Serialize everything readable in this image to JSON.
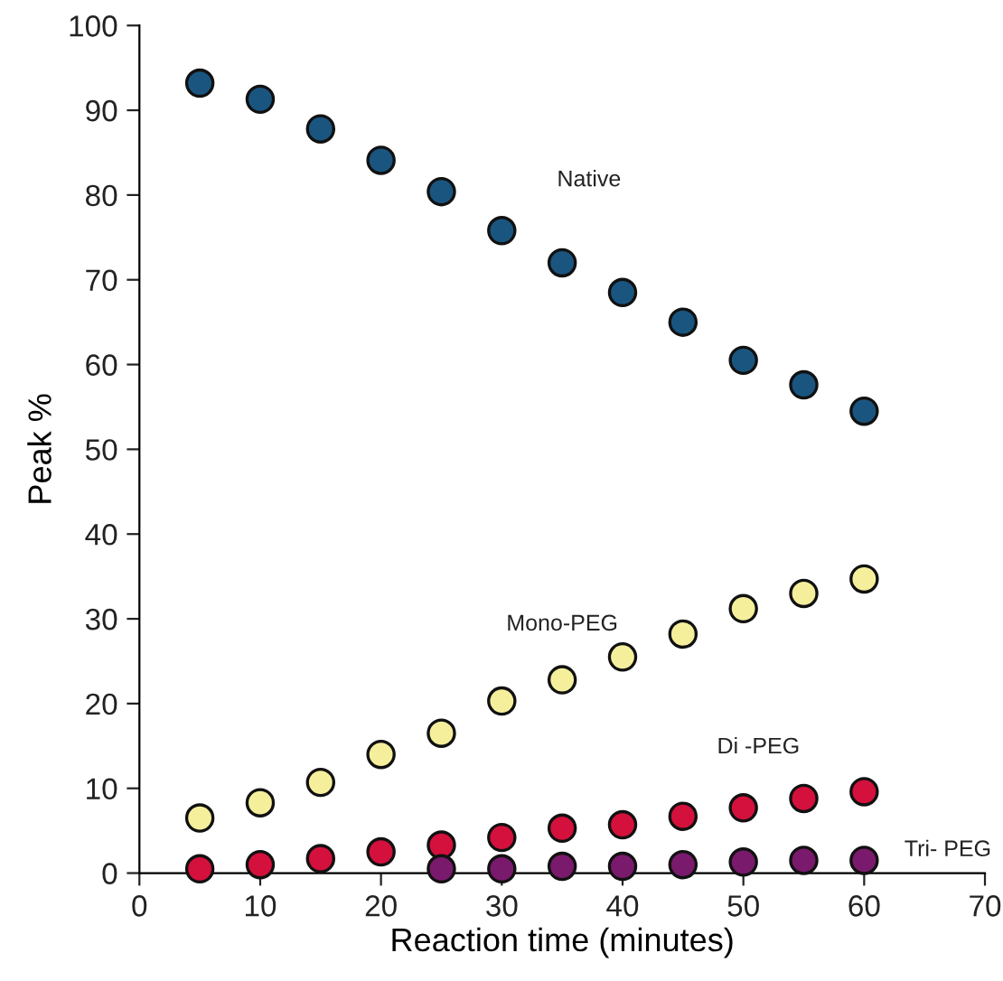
{
  "chart_data": {
    "type": "scatter",
    "xlabel": "Reaction time (minutes)",
    "ylabel": "Peak %",
    "x": [
      5,
      10,
      15,
      20,
      25,
      30,
      35,
      40,
      45,
      50,
      55,
      60
    ],
    "xlim": [
      0,
      70
    ],
    "xticks": [
      0,
      10,
      20,
      30,
      40,
      50,
      60,
      70
    ],
    "ylim": [
      0,
      100
    ],
    "yticks": [
      0,
      10,
      20,
      30,
      40,
      50,
      60,
      70,
      80,
      90,
      100
    ],
    "grid": false,
    "legend": false,
    "marker": "circle",
    "series": [
      {
        "name": "Native",
        "color": "#1a5580",
        "values": [
          93.2,
          91.3,
          87.8,
          84.1,
          80.4,
          75.8,
          72.0,
          68.5,
          65.0,
          60.5,
          57.6,
          54.5
        ]
      },
      {
        "name": "Mono-PEG",
        "color": "#f5ef9c",
        "values": [
          6.5,
          8.3,
          10.7,
          14.0,
          16.5,
          20.3,
          22.8,
          25.5,
          28.2,
          31.2,
          33.0,
          34.7
        ]
      },
      {
        "name": "Di -PEG",
        "color": "#d4103c",
        "values": [
          0.5,
          1.0,
          1.7,
          2.5,
          3.3,
          4.2,
          5.3,
          5.7,
          6.7,
          7.7,
          8.8,
          9.6
        ]
      },
      {
        "name": "Tri- PEG",
        "color": "#7a1a6c",
        "x": [
          25,
          30,
          35,
          40,
          45,
          50,
          55,
          60
        ],
        "values": [
          0.5,
          0.5,
          0.8,
          0.8,
          1.0,
          1.3,
          1.5,
          1.5
        ]
      }
    ]
  }
}
